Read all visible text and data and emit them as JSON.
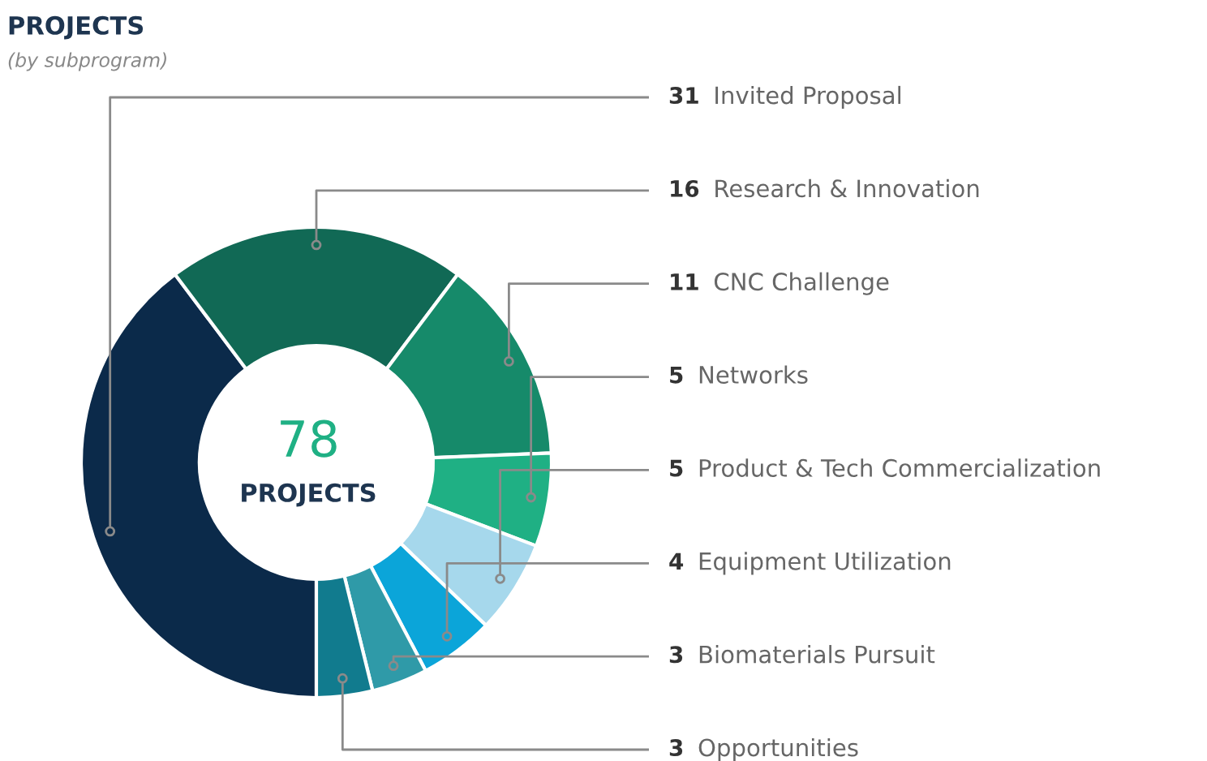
{
  "chart_data": {
    "type": "donut",
    "title": "PROJECTS",
    "subtitle": "(by subprogram)",
    "categories": [
      "Invited Proposal",
      "Research & Innovation",
      "CNC Challenge",
      "Networks",
      "Product & Tech Commercialization",
      "Equipment Utilization",
      "Biomaterials Pursuit",
      "Opportunities"
    ],
    "values": [
      31,
      16,
      11,
      5,
      5,
      4,
      3,
      3
    ],
    "colors": [
      "#0b2a4a",
      "#116955",
      "#168a6a",
      "#1fb084",
      "#a6d8ec",
      "#0ba5d9",
      "#2f9aa8",
      "#117b8e"
    ],
    "data_labels": true,
    "annotations": [
      "78",
      "PROJECTS"
    ]
  }
}
